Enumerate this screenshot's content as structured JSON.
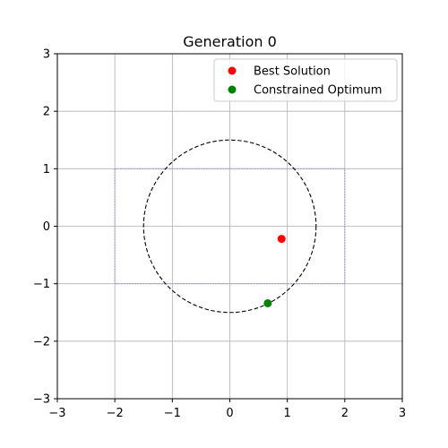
{
  "chart_data": {
    "type": "scatter",
    "title": "Generation 0",
    "xlabel": "",
    "ylabel": "",
    "xlim": [
      -3,
      3
    ],
    "ylim": [
      -3,
      3
    ],
    "xticks": [
      -3,
      -2,
      -1,
      0,
      1,
      2,
      3
    ],
    "yticks": [
      -3,
      -2,
      -1,
      0,
      1,
      2,
      3
    ],
    "xtick_labels": [
      "−3",
      "−2",
      "−1",
      "0",
      "1",
      "2",
      "3"
    ],
    "ytick_labels": [
      "−3",
      "−2",
      "−1",
      "0",
      "1",
      "2",
      "3"
    ],
    "grid": true,
    "legend_position": "top-right",
    "series": [
      {
        "name": "Best Solution",
        "color": "#ff0000",
        "points": [
          {
            "x": 0.9,
            "y": -0.22
          }
        ]
      },
      {
        "name": "Constrained Optimum",
        "color": "#008000",
        "points": [
          {
            "x": 0.66,
            "y": -1.34
          }
        ]
      }
    ],
    "constraint_circle": {
      "center": [
        0,
        0
      ],
      "radius": 1.5,
      "color": "#000000",
      "style": "dashed"
    },
    "constraint_box": {
      "x_range": [
        -2,
        2
      ],
      "y_range": [
        -1,
        1
      ],
      "color": "#9999cc",
      "style": "dotted"
    }
  }
}
